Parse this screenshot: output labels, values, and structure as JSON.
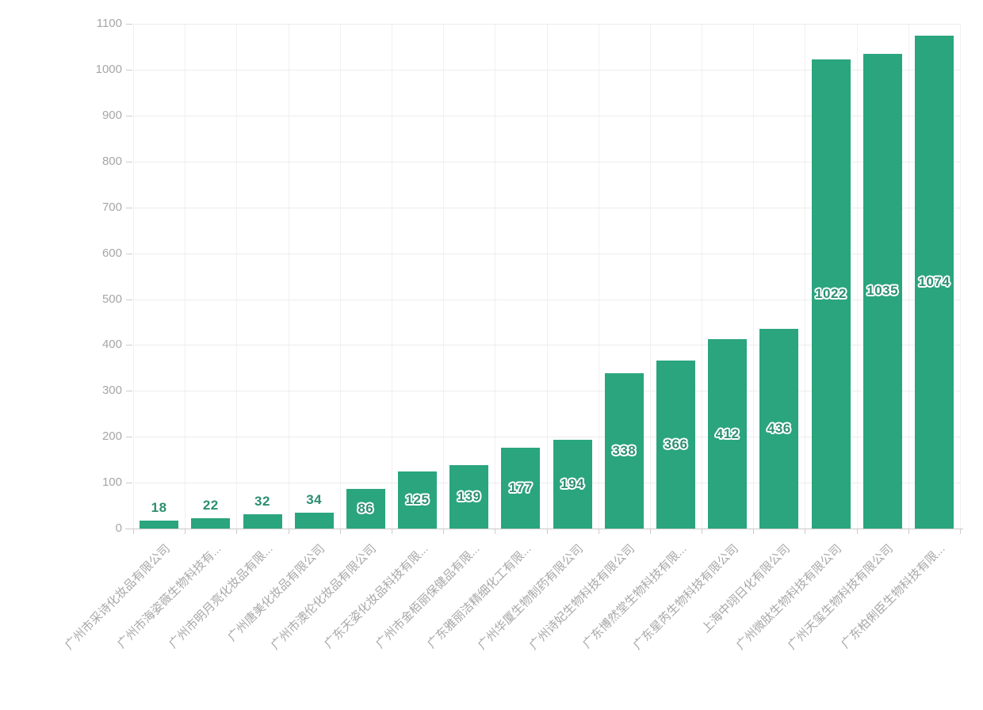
{
  "chart_data": {
    "type": "bar",
    "title": "",
    "xlabel": "",
    "ylabel": "",
    "categories": [
      "广州市采诗化妆品有限公司",
      "广州市海姿薇生物科技有...",
      "广州市明月亮化妆品有限...",
      "广州唐美化妆品有限公司",
      "广州市澳伦化妆品有限公司",
      "广东天姿化妆品科技有限...",
      "广州市金栢丽保健品有限...",
      "广东雅丽洁精细化工有限...",
      "广州华厦生物制药有限公司",
      "广州诗妃生物科技有限公司",
      "广东博然堂生物科技有限...",
      "广东星芮生物科技有限公司",
      "上海中翊日化有限公司",
      "广州微肽生物科技有限公司",
      "广州天玺生物科技有限公司",
      "广东柏俐臣生物科技有限..."
    ],
    "values": [
      18,
      22,
      32,
      34,
      86,
      125,
      139,
      177,
      194,
      338,
      366,
      412,
      436,
      1022,
      1035,
      1074
    ],
    "value_labels": [
      "18",
      "22",
      "32",
      "34",
      "86",
      "125",
      "139",
      "177",
      "194",
      "338",
      "366",
      "412",
      "436",
      "1022",
      "1035",
      "1074"
    ],
    "ylim": [
      0,
      1100
    ],
    "ytick_interval": 100,
    "yticks": [
      0,
      100,
      200,
      300,
      400,
      500,
      600,
      700,
      800,
      900,
      1000,
      1100
    ],
    "grid": true,
    "legend_position": "none",
    "x_label_rotation_deg": 45
  },
  "colors": {
    "bar": "#2aa57e",
    "value_label": "#2c8f70",
    "y_axis_text": "#a6a6a6",
    "x_axis_text": "#a8a8a8",
    "h_gridline": "#ececec",
    "v_gridline": "#f3f0f0",
    "axis_line": "#c9c9c9",
    "tick": "#cccccc",
    "background": "#ffffff"
  }
}
